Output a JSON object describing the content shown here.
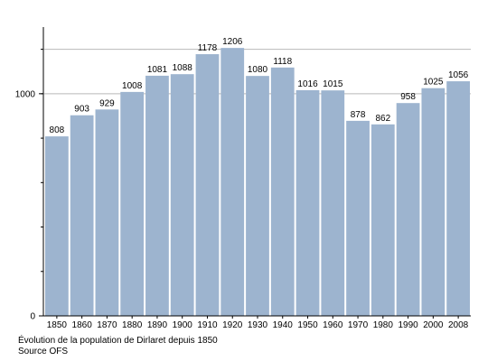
{
  "chart_data": {
    "type": "bar",
    "categories": [
      "1850",
      "1860",
      "1870",
      "1880",
      "1890",
      "1900",
      "1910",
      "1920",
      "1930",
      "1940",
      "1950",
      "1960",
      "1970",
      "1980",
      "1990",
      "2000",
      "2008"
    ],
    "values": [
      808,
      903,
      929,
      1008,
      1081,
      1088,
      1178,
      1206,
      1080,
      1118,
      1016,
      1015,
      878,
      862,
      958,
      1025,
      1056
    ],
    "ylim": [
      0,
      1300
    ],
    "yticks_labeled": [
      0,
      1000
    ],
    "yticks_minor": [
      200,
      400,
      600,
      800,
      1000,
      1200
    ],
    "gridlines": [
      1000,
      1200
    ],
    "bar_color": "#9db4cf",
    "grid": true,
    "legend": "none",
    "title": "",
    "xlabel": "",
    "ylabel": ""
  },
  "caption": {
    "line1": "Évolution de la population de Dirlaret depuis 1850",
    "line2": "Source OFS"
  }
}
